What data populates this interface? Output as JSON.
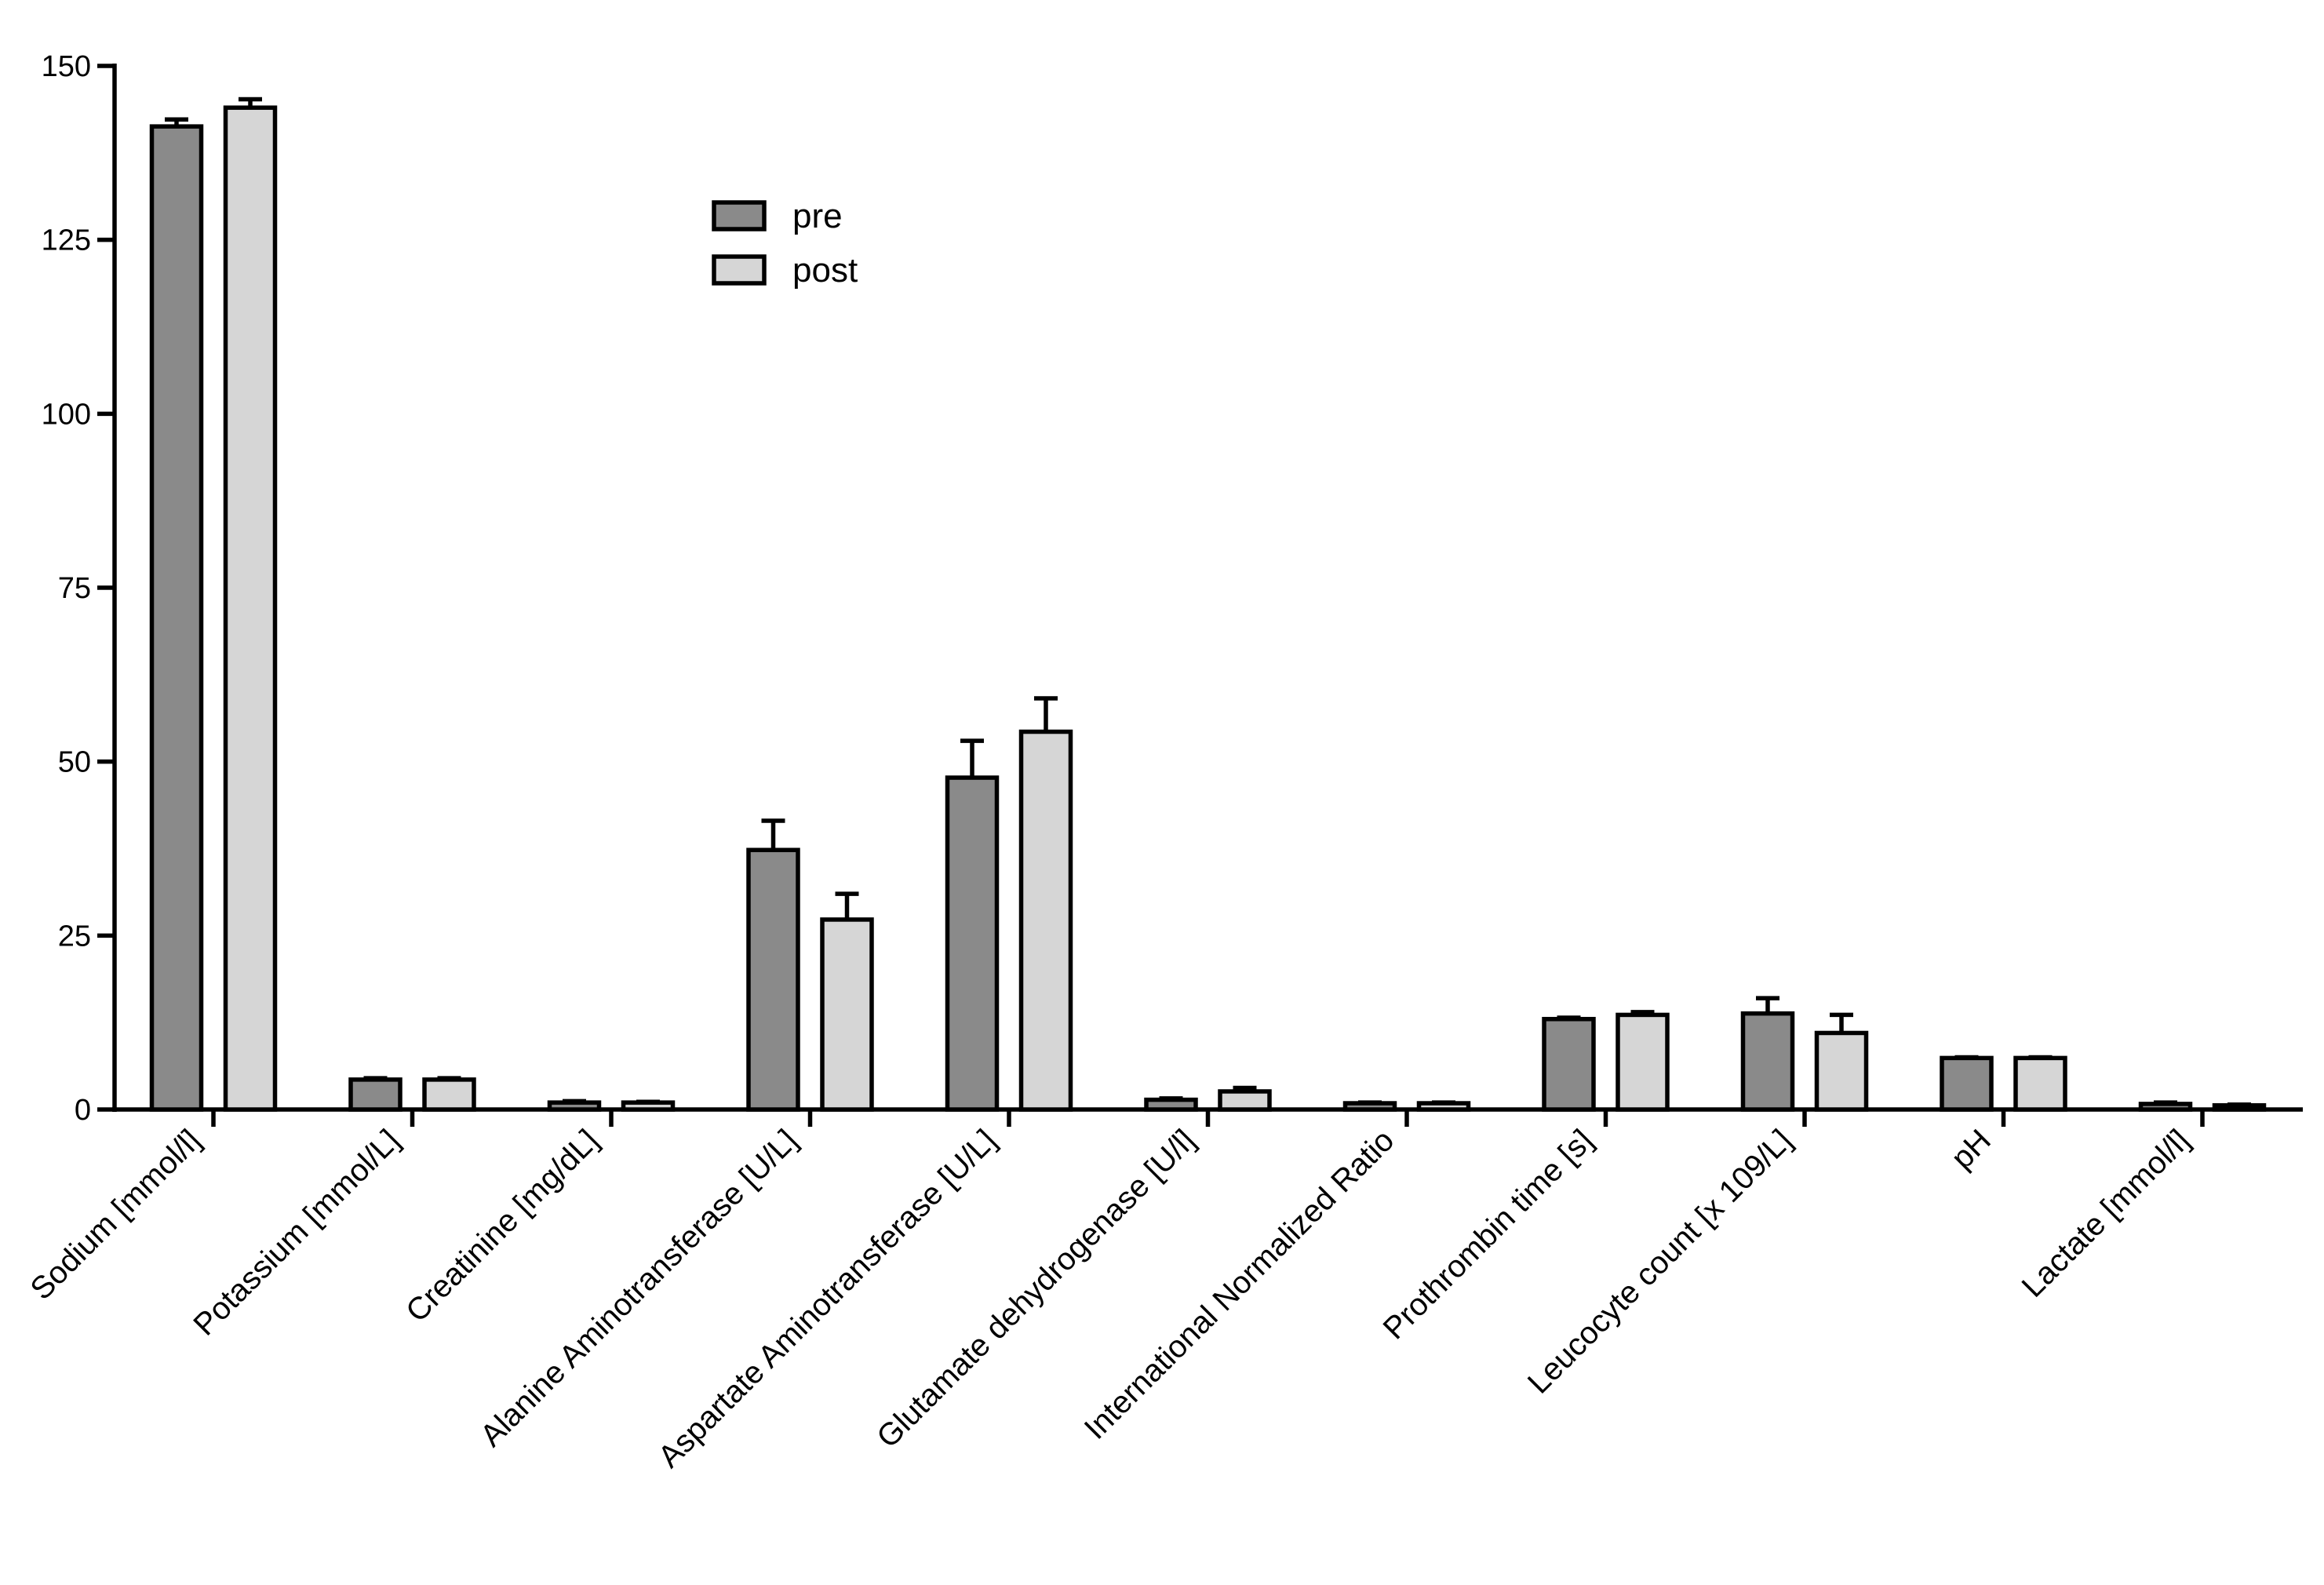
{
  "chart_data": {
    "type": "bar",
    "title": "",
    "xlabel": "",
    "ylabel": "",
    "ylim": [
      0,
      150
    ],
    "yticks": [
      "0",
      "25",
      "50",
      "75",
      "100",
      "125",
      "150"
    ],
    "grid": false,
    "legend_position": "top-center",
    "categories": [
      "Sodium [mmol/l]",
      "Potassium [mmol/L]",
      "Creatinine [mg/dL]",
      "Alanine Aminotransferase [U/L]",
      "Aspartate Aminotransferase [U/L]",
      "Glutamate dehydrogenase [U/l]",
      "International Normalized Ratio",
      "Prothrombin time [s]",
      "Leucocyte count [x 109/L]",
      "pH",
      "Lactate [mmol/l]"
    ],
    "series": [
      {
        "name": "pre",
        "color": "#8a8a8a",
        "values": [
          141.3,
          4.3,
          1.0,
          37.3,
          47.7,
          1.4,
          0.9,
          13.0,
          13.8,
          7.4,
          0.8
        ],
        "errors": [
          1.0,
          0.2,
          0.2,
          4.2,
          5.3,
          0.2,
          0.1,
          0.2,
          2.2,
          0.1,
          0.2
        ]
      },
      {
        "name": "post",
        "color": "#d6d6d6",
        "values": [
          144.0,
          4.3,
          1.0,
          27.3,
          54.3,
          2.6,
          0.9,
          13.6,
          11.0,
          7.4,
          0.6
        ],
        "errors": [
          1.2,
          0.2,
          0.1,
          3.7,
          4.8,
          0.5,
          0.1,
          0.4,
          2.6,
          0.1,
          0.1
        ]
      }
    ]
  }
}
